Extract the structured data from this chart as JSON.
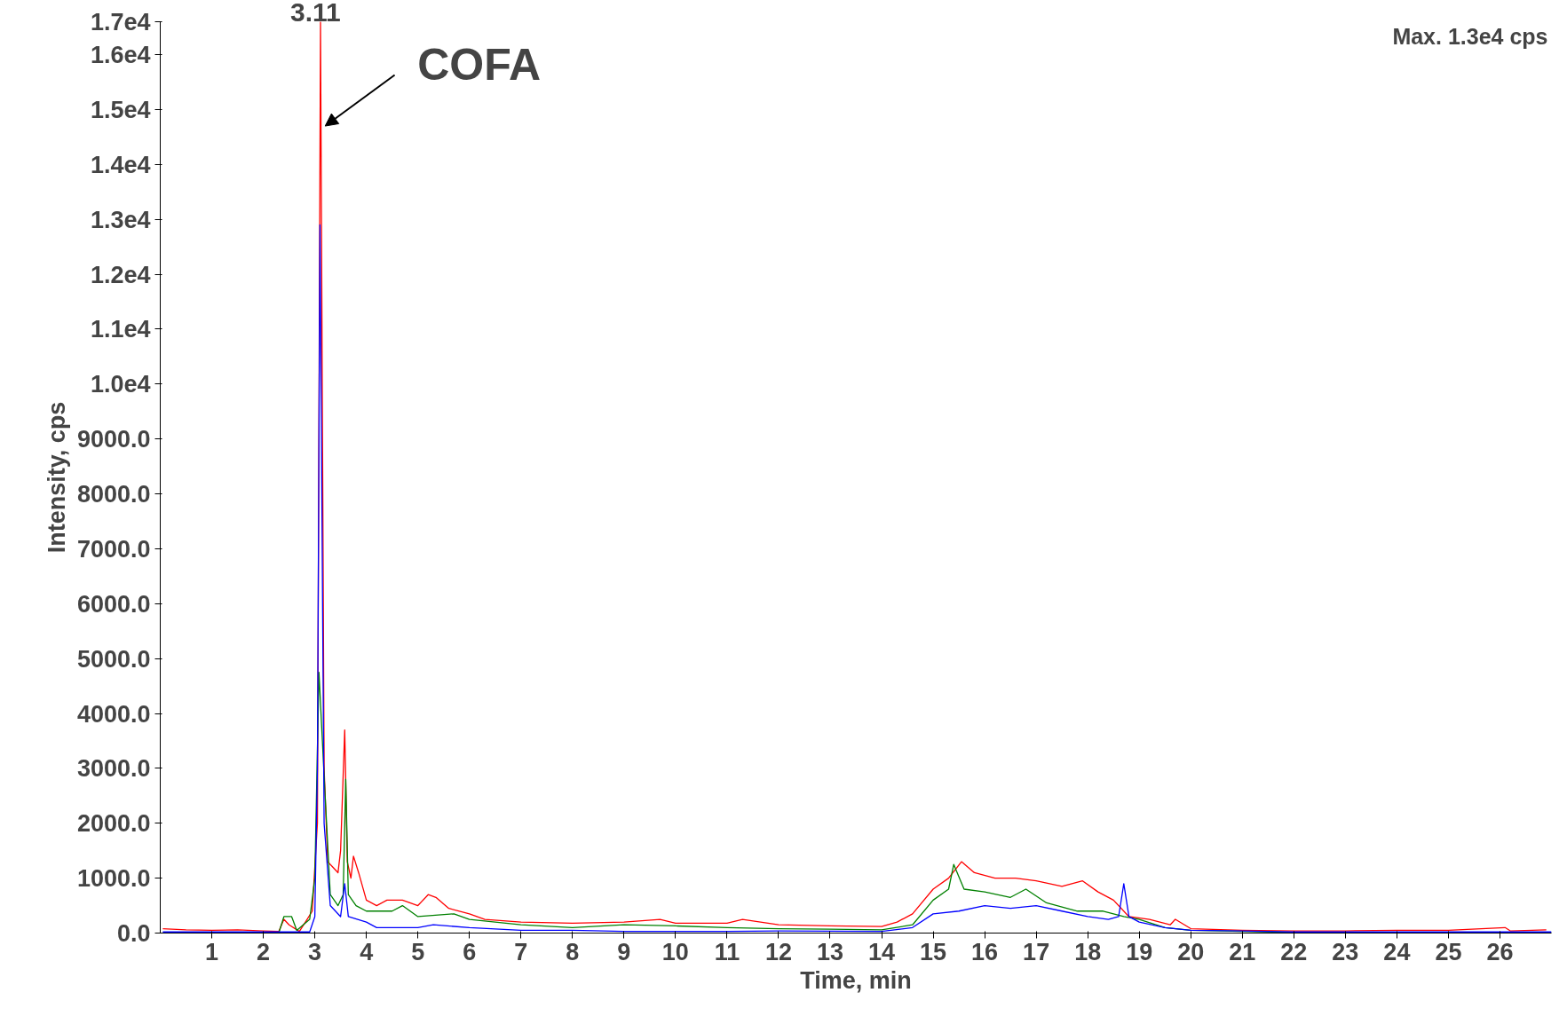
{
  "chart_data": {
    "type": "line",
    "xlabel": "Time, min",
    "ylabel": "Intensity, cps",
    "xlim": [
      0,
      27
    ],
    "ylim": [
      0,
      16600
    ],
    "xticks": [
      1,
      2,
      3,
      4,
      5,
      6,
      7,
      8,
      9,
      10,
      11,
      12,
      13,
      14,
      15,
      16,
      17,
      18,
      19,
      20,
      21,
      22,
      23,
      24,
      25,
      26
    ],
    "yticks": [
      {
        "value": 0,
        "label": "0.0"
      },
      {
        "value": 1000,
        "label": "1000.0"
      },
      {
        "value": 2000,
        "label": "2000.0"
      },
      {
        "value": 3000,
        "label": "3000.0"
      },
      {
        "value": 4000,
        "label": "4000.0"
      },
      {
        "value": 5000,
        "label": "5000.0"
      },
      {
        "value": 6000,
        "label": "6000.0"
      },
      {
        "value": 7000,
        "label": "7000.0"
      },
      {
        "value": 8000,
        "label": "8000.0"
      },
      {
        "value": 9000,
        "label": "9000.0"
      },
      {
        "value": 10000,
        "label": "1.0e4"
      },
      {
        "value": 11000,
        "label": "1.1e4"
      },
      {
        "value": 12000,
        "label": "1.2e4"
      },
      {
        "value": 13000,
        "label": "1.3e4"
      },
      {
        "value": 14000,
        "label": "1.4e4"
      },
      {
        "value": 15000,
        "label": "1.5e4"
      },
      {
        "value": 16000,
        "label": "1.6e4"
      },
      {
        "value": 16600,
        "label": "1.7e4"
      }
    ],
    "grid": false,
    "line_style": "solid",
    "annotations": [
      {
        "text": "3.11",
        "x": 3.11,
        "y": 16600
      },
      {
        "text": "COFA",
        "x": 3.2,
        "y": 14700
      },
      "Max. 1.3e4 cps"
    ],
    "series": [
      {
        "color": "#ff0000",
        "x": [
          0.05,
          0.5,
          1,
          1.5,
          2,
          2.3,
          2.4,
          2.5,
          2.7,
          2.85,
          2.95,
          3.05,
          3.11,
          3.18,
          3.25,
          3.35,
          3.45,
          3.5,
          3.58,
          3.63,
          3.7,
          3.75,
          3.85,
          4.0,
          4.2,
          4.4,
          4.7,
          5.0,
          5.2,
          5.35,
          5.6,
          6,
          6.3,
          7,
          8,
          9,
          9.7,
          10,
          11,
          11.3,
          12,
          13,
          14,
          14.3,
          14.6,
          15,
          15.3,
          15.55,
          15.8,
          16.2,
          16.6,
          17,
          17.5,
          17.9,
          18.2,
          18.5,
          18.8,
          19.2,
          19.6,
          19.7,
          20,
          21,
          22,
          23,
          24,
          25,
          26.1,
          26.2,
          26.9
        ],
        "values": [
          80,
          60,
          50,
          60,
          40,
          30,
          250,
          150,
          30,
          250,
          400,
          2000,
          16600,
          3000,
          1300,
          1200,
          1100,
          1500,
          3700,
          1300,
          1000,
          1400,
          1100,
          600,
          500,
          600,
          600,
          500,
          700,
          650,
          450,
          350,
          250,
          200,
          180,
          200,
          250,
          180,
          180,
          250,
          150,
          130,
          120,
          200,
          350,
          800,
          1000,
          1300,
          1100,
          1000,
          1000,
          950,
          850,
          950,
          750,
          600,
          300,
          250,
          150,
          250,
          80,
          50,
          40,
          40,
          50,
          50,
          100,
          40,
          60
        ]
      },
      {
        "color": "#008000",
        "x": [
          0.05,
          2.3,
          2.4,
          2.55,
          2.65,
          2.9,
          3.0,
          3.08,
          3.2,
          3.3,
          3.45,
          3.55,
          3.6,
          3.65,
          3.8,
          4,
          4.5,
          4.7,
          5,
          5.7,
          6,
          7,
          8,
          9,
          10,
          11,
          12,
          13,
          14,
          14.6,
          15,
          15.3,
          15.4,
          15.6,
          16,
          16.5,
          16.8,
          17.2,
          17.8,
          18.3,
          18.7,
          19,
          19.5,
          20,
          21,
          22,
          27
        ],
        "values": [
          0,
          0,
          300,
          300,
          50,
          250,
          1000,
          4750,
          2500,
          700,
          500,
          700,
          2800,
          700,
          500,
          400,
          400,
          500,
          300,
          350,
          250,
          150,
          100,
          150,
          130,
          100,
          80,
          70,
          60,
          150,
          600,
          800,
          1250,
          800,
          750,
          650,
          800,
          550,
          400,
          400,
          300,
          250,
          100,
          50,
          30,
          10,
          10
        ]
      },
      {
        "color": "#0000ff",
        "x": [
          0.05,
          2.9,
          3.0,
          3.05,
          3.1,
          3.18,
          3.3,
          3.5,
          3.58,
          3.65,
          4,
          4.2,
          5,
          5.3,
          6,
          7,
          8,
          9,
          11,
          12,
          14,
          14.6,
          15,
          15.5,
          16,
          16.5,
          17,
          17.5,
          18,
          18.4,
          18.6,
          18.7,
          18.8,
          19,
          19.5,
          20,
          21,
          22,
          27
        ],
        "values": [
          20,
          20,
          300,
          3000,
          12900,
          2000,
          500,
          300,
          900,
          300,
          200,
          100,
          100,
          150,
          100,
          50,
          50,
          30,
          30,
          40,
          30,
          100,
          350,
          400,
          500,
          450,
          500,
          400,
          300,
          250,
          300,
          900,
          300,
          200,
          100,
          50,
          40,
          20,
          20
        ]
      }
    ]
  }
}
